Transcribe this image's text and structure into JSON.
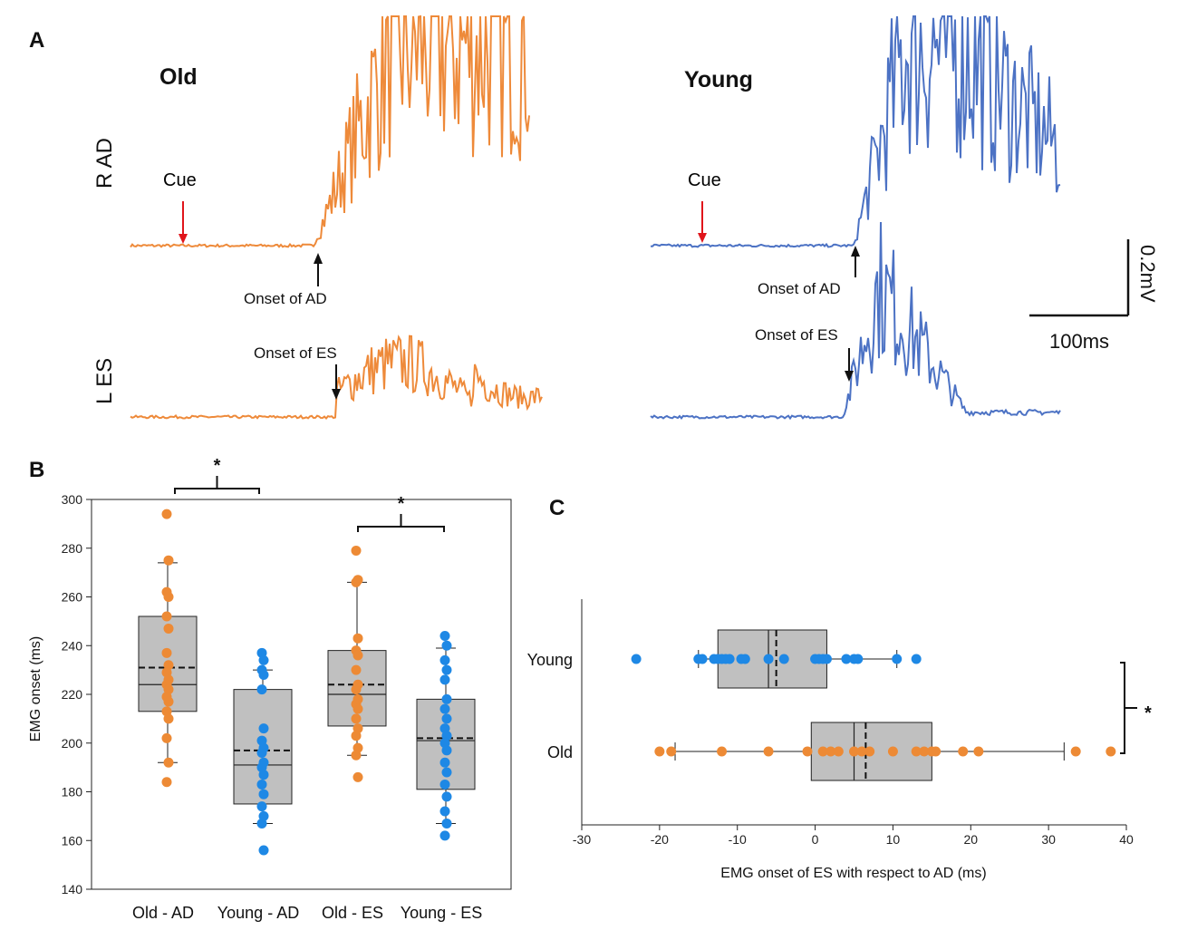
{
  "colors": {
    "old": "#ED8A35",
    "young": "#1E88E5",
    "trace_old": "#EE8A3A",
    "trace_young": "#4C72C4",
    "cue": "#E0151B",
    "box_fill": "#C0C0C0"
  },
  "panel_a": {
    "letter": "A",
    "groups": [
      {
        "key": "old",
        "title": "Old",
        "cue_label": "Cue",
        "onset_ad_label": "Onset of AD",
        "onset_es_label": "Onset of ES"
      },
      {
        "key": "young",
        "title": "Young",
        "cue_label": "Cue",
        "onset_ad_label": "Onset of AD",
        "onset_es_label": "Onset of ES"
      }
    ],
    "channel_labels": {
      "ad": "R AD",
      "es": "L ES"
    },
    "scale_bar": {
      "amplitude": "0.2mV",
      "time": "100ms"
    }
  },
  "chart_data": [
    {
      "panel": "B",
      "letter": "B",
      "type": "box",
      "ylabel": "EMG onset (ms)",
      "ylim": [
        140,
        300
      ],
      "yticks": [
        140,
        160,
        180,
        200,
        220,
        240,
        260,
        280,
        300
      ],
      "categories": [
        "Old - AD",
        "Young - AD",
        "Old - ES",
        "Young - ES"
      ],
      "boxes": [
        {
          "category": "Old - AD",
          "group": "old",
          "min": 192,
          "q1": 213,
          "median": 224,
          "mean": 231,
          "q3": 252,
          "max": 274,
          "points": [
            294,
            275,
            262,
            260,
            252,
            247,
            237,
            232,
            229,
            226,
            224,
            222,
            219,
            217,
            213,
            210,
            202,
            192,
            184
          ]
        },
        {
          "category": "Young - AD",
          "group": "young",
          "min": 167,
          "q1": 175,
          "median": 191,
          "mean": 197,
          "q3": 222,
          "max": 230,
          "points": [
            237,
            234,
            230,
            228,
            222,
            206,
            201,
            198,
            196,
            192,
            190,
            187,
            183,
            179,
            174,
            170,
            167,
            156
          ]
        },
        {
          "category": "Old - ES",
          "group": "old",
          "min": 195,
          "q1": 207,
          "median": 220,
          "mean": 224,
          "q3": 238,
          "max": 266,
          "points": [
            279,
            267,
            266,
            243,
            238,
            236,
            230,
            224,
            222,
            218,
            216,
            214,
            210,
            206,
            203,
            198,
            195,
            186
          ]
        },
        {
          "category": "Young - ES",
          "group": "young",
          "min": 167,
          "q1": 181,
          "median": 201,
          "mean": 202,
          "q3": 218,
          "max": 239,
          "points": [
            244,
            240,
            234,
            230,
            226,
            218,
            214,
            210,
            206,
            203,
            200,
            197,
            192,
            188,
            183,
            178,
            172,
            167,
            162
          ]
        }
      ],
      "significance": [
        {
          "between": [
            "Old - AD",
            "Young - AD"
          ],
          "label": "*"
        },
        {
          "between": [
            "Old - ES",
            "Young - ES"
          ],
          "label": "*"
        }
      ]
    },
    {
      "panel": "C",
      "letter": "C",
      "type": "box-horizontal",
      "xlabel": "EMG onset of ES with respect to AD (ms)",
      "xlim": [
        -30,
        40
      ],
      "xticks": [
        -30,
        -20,
        -10,
        0,
        10,
        20,
        30,
        40
      ],
      "categories": [
        "Young",
        "Old"
      ],
      "boxes": [
        {
          "category": "Young",
          "group": "young",
          "min": -15,
          "q1": -12.5,
          "median": -6,
          "mean": -5,
          "q3": 1.5,
          "max": 10.5,
          "points": [
            -23,
            -15,
            -14.5,
            -13,
            -12.5,
            -12,
            -11.5,
            -11,
            -9.5,
            -9,
            -6,
            -4,
            0,
            0.5,
            1,
            1.5,
            4,
            5,
            5.5,
            10.5,
            13
          ]
        },
        {
          "category": "Old",
          "group": "old",
          "min": -18,
          "q1": -0.5,
          "median": 5,
          "mean": 6.5,
          "q3": 15,
          "max": 32,
          "points": [
            -20,
            -18.5,
            -12,
            -6,
            -1,
            1,
            2,
            3,
            5,
            6,
            7,
            10,
            13,
            14,
            15,
            15.5,
            19,
            21,
            33.5,
            38
          ]
        }
      ],
      "significance": [
        {
          "between": [
            "Young",
            "Old"
          ],
          "label": "*"
        }
      ]
    }
  ]
}
